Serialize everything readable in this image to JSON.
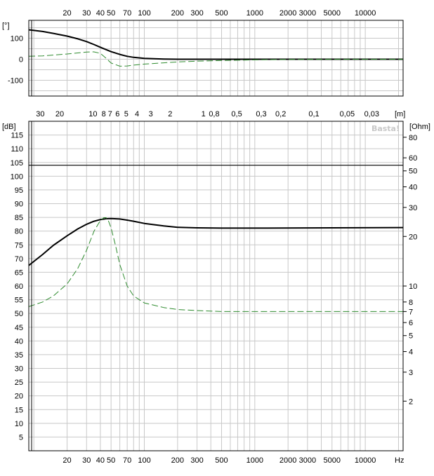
{
  "chart_data": [
    {
      "type": "line",
      "title": "",
      "xlabel": "",
      "ylabel": "[°]",
      "x_scale": "log",
      "xlim": [
        9,
        22000
      ],
      "ylim": [
        -175,
        185
      ],
      "x_tick_labels": [
        "20",
        "30",
        "40",
        "50",
        "70",
        "100",
        "200",
        "300",
        "500",
        "1000",
        "2000",
        "3000",
        "5000",
        "10000"
      ],
      "y_tick_labels": [
        "100",
        "0",
        "-100"
      ],
      "grid": true,
      "series": [
        {
          "color": "#000000",
          "style": "solid",
          "x": [
            9,
            12,
            15,
            20,
            25,
            30,
            35,
            40,
            50,
            60,
            70,
            80,
            100,
            150,
            200,
            500,
            1000,
            5000,
            22000
          ],
          "y": [
            140,
            132,
            123,
            110,
            97,
            84,
            70,
            57,
            36,
            23,
            14,
            9,
            4,
            1,
            0,
            0,
            0,
            0,
            0
          ]
        },
        {
          "color": "#2e8b2e",
          "style": "dashed",
          "x": [
            9,
            12,
            15,
            20,
            25,
            30,
            35,
            40,
            45,
            50,
            60,
            70,
            80,
            100,
            150,
            200,
            300,
            500,
            1000,
            2000,
            5000,
            22000
          ],
          "y": [
            14,
            16,
            20,
            25,
            30,
            34,
            35,
            28,
            5,
            -18,
            -33,
            -32,
            -28,
            -23,
            -17,
            -13,
            -9,
            -6,
            -3,
            -1,
            0,
            0
          ]
        }
      ]
    },
    {
      "type": "line",
      "title": "",
      "xlabel": "Hz",
      "ylabel": "[dB]",
      "y2label": "[Ohm]",
      "top_axis_label": "[m]",
      "x_scale": "log",
      "xlim": [
        9,
        22000
      ],
      "ylim": [
        0,
        120
      ],
      "y2_scale": "log",
      "y2lim": [
        1,
        100
      ],
      "x_tick_labels": [
        "20",
        "30",
        "40",
        "50",
        "70",
        "100",
        "200",
        "300",
        "500",
        "1000",
        "2000",
        "3000",
        "5000",
        "10000"
      ],
      "y_tick_labels": [
        "5",
        "10",
        "15",
        "20",
        "25",
        "30",
        "35",
        "40",
        "45",
        "50",
        "55",
        "60",
        "65",
        "70",
        "75",
        "80",
        "85",
        "90",
        "95",
        "100",
        "105",
        "110",
        "115"
      ],
      "y2_tick_labels": [
        "2",
        "3",
        "4",
        "5",
        "6",
        "7",
        "8",
        "10",
        "20",
        "30",
        "40",
        "50",
        "60",
        "80"
      ],
      "top_tick_labels": [
        "30",
        "20",
        "10",
        "8",
        "7",
        "6",
        "5",
        "4",
        "3",
        "2",
        "1",
        "0,8",
        "0,5",
        "0,3",
        "0,2",
        "0,1",
        "0,05",
        "0,03"
      ],
      "reference_line": 104,
      "watermark": "Basta!",
      "grid": true,
      "series": [
        {
          "axis": "left",
          "color": "#000000",
          "style": "solid",
          "x": [
            9,
            12,
            15,
            20,
            25,
            30,
            35,
            40,
            45,
            50,
            60,
            70,
            80,
            100,
            150,
            200,
            300,
            500,
            1000,
            5000,
            22000
          ],
          "y": [
            67.5,
            71.5,
            74.8,
            78.3,
            80.8,
            82.5,
            83.6,
            84.2,
            84.5,
            84.6,
            84.4,
            84.0,
            83.6,
            82.8,
            81.9,
            81.4,
            81.2,
            81.1,
            81.1,
            81.2,
            81.3
          ]
        },
        {
          "axis": "right",
          "color": "#2e8b2e",
          "style": "dashed",
          "x": [
            9,
            12,
            15,
            20,
            25,
            30,
            35,
            40,
            43,
            45,
            47,
            50,
            55,
            60,
            70,
            80,
            100,
            150,
            200,
            300,
            500,
            1000,
            5000,
            22000
          ],
          "y": [
            7.5,
            8.0,
            8.7,
            10.3,
            12.8,
            16.5,
            21.5,
            25.0,
            26.0,
            26.0,
            25.2,
            22.5,
            17.5,
            13.5,
            10.0,
            8.7,
            7.9,
            7.4,
            7.2,
            7.1,
            7.0,
            7.0,
            7.0,
            7.0
          ]
        }
      ]
    }
  ]
}
